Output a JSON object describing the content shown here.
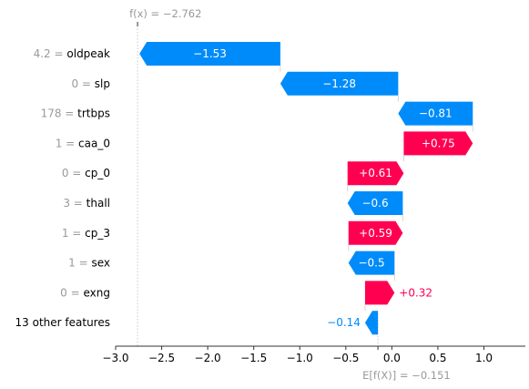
{
  "chart_data": {
    "type": "waterfall",
    "base_value": -0.151,
    "output_value": -2.762,
    "base_label": "E[f(X)] = −0.151",
    "output_label": "f(x) = −2.762",
    "features": [
      {
        "feature_value": "4.2",
        "name": "oldpeak",
        "shap": -1.53,
        "label": "−1.53"
      },
      {
        "feature_value": "0",
        "name": "slp",
        "shap": -1.28,
        "label": "−1.28"
      },
      {
        "feature_value": "178",
        "name": "trtbps",
        "shap": -0.81,
        "label": "−0.81"
      },
      {
        "feature_value": "1",
        "name": "caa_0",
        "shap": 0.75,
        "label": "+0.75"
      },
      {
        "feature_value": "0",
        "name": "cp_0",
        "shap": 0.61,
        "label": "+0.61"
      },
      {
        "feature_value": "3",
        "name": "thall",
        "shap": -0.6,
        "label": "−0.6"
      },
      {
        "feature_value": "1",
        "name": "cp_3",
        "shap": 0.59,
        "label": "+0.59"
      },
      {
        "feature_value": "1",
        "name": "sex",
        "shap": -0.5,
        "label": "−0.5"
      },
      {
        "feature_value": "0",
        "name": "exng",
        "shap": 0.32,
        "label": "+0.32"
      },
      {
        "feature_value": "",
        "name": "13 other features",
        "shap": -0.14,
        "label": "−0.14"
      }
    ],
    "x_ticks": [
      -3.0,
      -2.5,
      -2.0,
      -1.5,
      -1.0,
      -0.5,
      0.0,
      0.5,
      1.0
    ],
    "x_tick_labels": [
      "−3.0",
      "−2.5",
      "−2.0",
      "−1.5",
      "−1.0",
      "−0.5",
      "0.0",
      "0.5",
      "1.0"
    ],
    "xlim": [
      -3.0,
      1.45
    ],
    "colors": {
      "positive": "#ff0051",
      "negative": "#008bfb",
      "text_gray": "#999999",
      "label_dark": "#000000",
      "axis": "#333333"
    }
  }
}
